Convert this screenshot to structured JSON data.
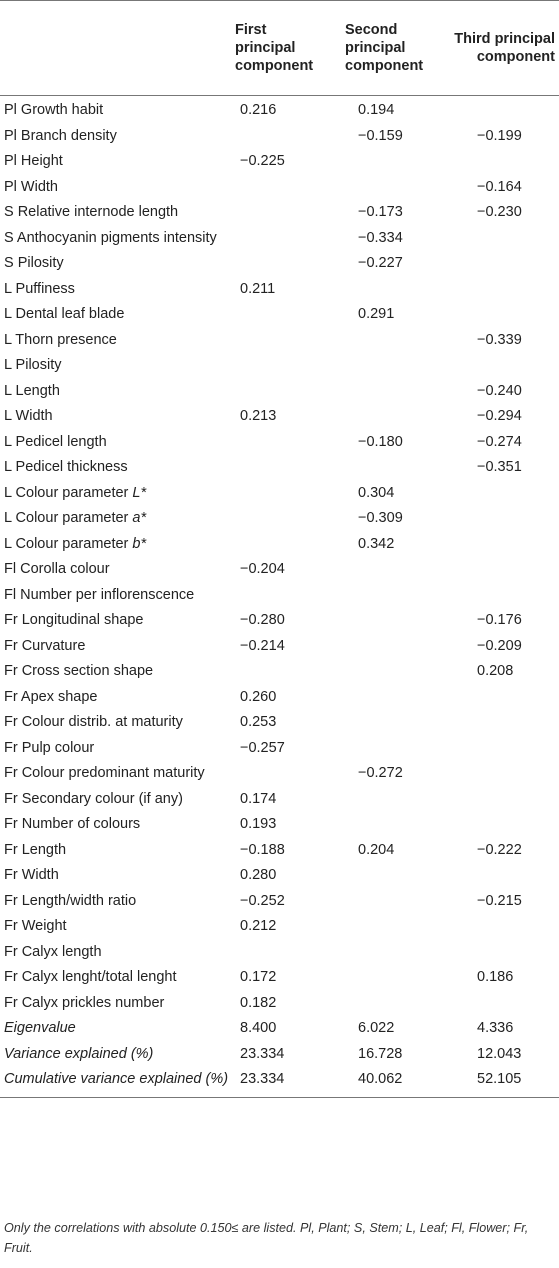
{
  "table": {
    "headers": [
      "",
      "First principal component",
      "Second principal component",
      "Third principal component"
    ],
    "rows": [
      {
        "label": "Pl Growth habit",
        "v1": "0.216",
        "v2": "0.194",
        "v3": ""
      },
      {
        "label": "Pl Branch density",
        "v1": "",
        "v2": "−0.159",
        "v3": "−0.199"
      },
      {
        "label": "Pl Height",
        "v1": "−0.225",
        "v2": "",
        "v3": ""
      },
      {
        "label": "Pl Width",
        "v1": "",
        "v2": "",
        "v3": "−0.164"
      },
      {
        "label": "S Relative internode length",
        "v1": "",
        "v2": "−0.173",
        "v3": "−0.230"
      },
      {
        "label": "S Anthocyanin pigments intensity",
        "v1": "",
        "v2": "−0.334",
        "v3": ""
      },
      {
        "label": "S Pilosity",
        "v1": "",
        "v2": "−0.227",
        "v3": ""
      },
      {
        "label": "L Puffiness",
        "v1": "0.211",
        "v2": "",
        "v3": ""
      },
      {
        "label": "L Dental leaf blade",
        "v1": "",
        "v2": "0.291",
        "v3": ""
      },
      {
        "label": "L Thorn presence",
        "v1": "",
        "v2": "",
        "v3": "−0.339"
      },
      {
        "label": "L Pilosity",
        "v1": "",
        "v2": "",
        "v3": ""
      },
      {
        "label": "L Length",
        "v1": "",
        "v2": "",
        "v3": "−0.240"
      },
      {
        "label": "L Width",
        "v1": "0.213",
        "v2": "",
        "v3": "−0.294"
      },
      {
        "label": "L Pedicel length",
        "v1": "",
        "v2": "−0.180",
        "v3": "−0.274"
      },
      {
        "label": "L Pedicel thickness",
        "v1": "",
        "v2": "",
        "v3": "−0.351"
      },
      {
        "label": "L Colour parameter ",
        "label_it": "L*",
        "v1": "",
        "v2": "0.304",
        "v3": ""
      },
      {
        "label": "L Colour parameter ",
        "label_it": "a*",
        "v1": "",
        "v2": "−0.309",
        "v3": ""
      },
      {
        "label": "L Colour parameter ",
        "label_it": "b*",
        "v1": "",
        "v2": "0.342",
        "v3": ""
      },
      {
        "label": "Fl Corolla colour",
        "v1": "−0.204",
        "v2": "",
        "v3": ""
      },
      {
        "label": "Fl Number per inflorenscence",
        "v1": "",
        "v2": "",
        "v3": ""
      },
      {
        "label": "Fr Longitudinal shape",
        "v1": "−0.280",
        "v2": "",
        "v3": "−0.176"
      },
      {
        "label": "Fr Curvature",
        "v1": "−0.214",
        "v2": "",
        "v3": "−0.209"
      },
      {
        "label": "Fr Cross section shape",
        "v1": "",
        "v2": "",
        "v3": "0.208"
      },
      {
        "label": "Fr Apex shape",
        "v1": "0.260",
        "v2": "",
        "v3": ""
      },
      {
        "label": "Fr Colour distrib. at maturity",
        "v1": "0.253",
        "v2": "",
        "v3": ""
      },
      {
        "label": "Fr Pulp colour",
        "v1": "−0.257",
        "v2": "",
        "v3": ""
      },
      {
        "label": "Fr Colour predominant maturity",
        "v1": "",
        "v2": "−0.272",
        "v3": ""
      },
      {
        "label": "Fr Secondary colour (if any)",
        "v1": "0.174",
        "v2": "",
        "v3": ""
      },
      {
        "label": "Fr Number of colours",
        "v1": "0.193",
        "v2": "",
        "v3": ""
      },
      {
        "label": "Fr Length",
        "v1": "−0.188",
        "v2": "0.204",
        "v3": "−0.222"
      },
      {
        "label": "Fr Width",
        "v1": "0.280",
        "v2": "",
        "v3": ""
      },
      {
        "label": "Fr Length/width ratio",
        "v1": "−0.252",
        "v2": "",
        "v3": "−0.215"
      },
      {
        "label": "Fr Weight",
        "v1": "0.212",
        "v2": "",
        "v3": ""
      },
      {
        "label": "Fr Calyx length",
        "v1": "",
        "v2": "",
        "v3": ""
      },
      {
        "label": "Fr Calyx lenght/total lenght",
        "v1": "0.172",
        "v2": "",
        "v3": "0.186"
      },
      {
        "label": "Fr Calyx prickles number",
        "v1": "0.182",
        "v2": "",
        "v3": ""
      },
      {
        "label": "Eigenvalue",
        "italic": true,
        "v1": "8.400",
        "v2": "6.022",
        "v3": "4.336"
      },
      {
        "label": "Variance explained (%)",
        "italic": true,
        "v1": "23.334",
        "v2": "16.728",
        "v3": "12.043"
      },
      {
        "label": "Cumulative variance explained (%)",
        "italic": true,
        "v1": "23.334",
        "v2": "40.062",
        "v3": "52.105"
      }
    ]
  },
  "footnote": "Only the correlations with absolute 0.150≤ are listed. Pl, Plant; S, Stem; L, Leaf; Fl, Flower; Fr, Fruit."
}
